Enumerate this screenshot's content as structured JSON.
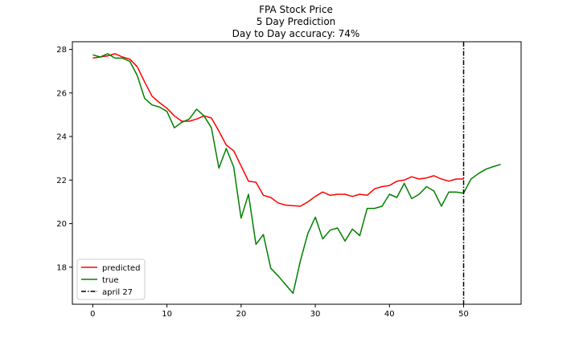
{
  "chart_data": {
    "type": "line",
    "title": [
      "FPA Stock Price",
      "5 Day Prediction",
      "Day to Day accuracy: 74%"
    ],
    "xlabel": "",
    "ylabel": "",
    "xlim": [
      -2.75,
      57.75
    ],
    "ylim": [
      16.3,
      28.35
    ],
    "x_ticks": [
      0,
      10,
      20,
      30,
      40,
      50
    ],
    "y_ticks": [
      18,
      20,
      22,
      24,
      26,
      28
    ],
    "grid": false,
    "legend_position": "lower-left",
    "series": [
      {
        "name": "predicted",
        "color": "#ff0000",
        "x": [
          0,
          1,
          2,
          3,
          4,
          5,
          6,
          7,
          8,
          9,
          10,
          11,
          12,
          13,
          14,
          15,
          16,
          17,
          18,
          19,
          20,
          21,
          22,
          23,
          24,
          25,
          26,
          27,
          28,
          29,
          30,
          31,
          32,
          33,
          34,
          35,
          36,
          37,
          38,
          39,
          40,
          41,
          42,
          43,
          44,
          45,
          46,
          47,
          48,
          49,
          50
        ],
        "values": [
          27.6,
          27.65,
          27.7,
          27.8,
          27.65,
          27.55,
          27.2,
          26.5,
          25.85,
          25.55,
          25.3,
          24.95,
          24.7,
          24.7,
          24.8,
          24.95,
          24.85,
          24.25,
          23.6,
          23.35,
          22.65,
          21.95,
          21.9,
          21.3,
          21.2,
          20.95,
          20.85,
          20.82,
          20.8,
          21.0,
          21.25,
          21.45,
          21.3,
          21.35,
          21.35,
          21.25,
          21.35,
          21.3,
          21.6,
          21.7,
          21.75,
          21.95,
          22.0,
          22.15,
          22.05,
          22.1,
          22.2,
          22.05,
          21.95,
          22.05,
          22.05
        ]
      },
      {
        "name": "true",
        "color": "#008000",
        "x": [
          0,
          1,
          2,
          3,
          4,
          5,
          6,
          7,
          8,
          9,
          10,
          11,
          12,
          13,
          14,
          15,
          16,
          17,
          18,
          19,
          20,
          21,
          22,
          23,
          24,
          25,
          26,
          27,
          28,
          29,
          30,
          31,
          32,
          33,
          34,
          35,
          36,
          37,
          38,
          39,
          40,
          41,
          42,
          43,
          44,
          45,
          46,
          47,
          48,
          49,
          50,
          51,
          52,
          53,
          54,
          55
        ],
        "values": [
          27.75,
          27.65,
          27.8,
          27.6,
          27.6,
          27.45,
          26.8,
          25.75,
          25.45,
          25.35,
          25.15,
          24.4,
          24.65,
          24.8,
          25.25,
          24.95,
          24.4,
          22.55,
          23.45,
          22.6,
          20.25,
          21.35,
          19.05,
          19.5,
          17.95,
          17.6,
          17.2,
          16.8,
          18.3,
          19.55,
          20.3,
          19.3,
          19.7,
          19.8,
          19.2,
          19.75,
          19.45,
          20.7,
          20.7,
          20.8,
          21.35,
          21.2,
          21.85,
          21.15,
          21.35,
          21.7,
          21.5,
          20.8,
          21.45,
          21.45,
          21.4,
          22.05,
          22.3,
          22.5,
          22.62,
          22.72
        ]
      }
    ],
    "vline": {
      "name": "april 27",
      "x": 50,
      "color": "#000000",
      "style": "dash-dot"
    }
  }
}
